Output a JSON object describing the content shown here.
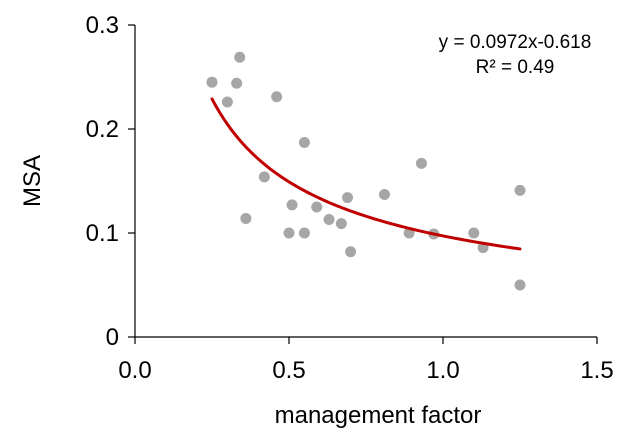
{
  "chart_data": {
    "type": "scatter",
    "title": "",
    "xlabel": "management factor",
    "ylabel": "MSA",
    "xlim": [
      0,
      1.5
    ],
    "ylim": [
      0,
      0.3
    ],
    "x_ticks": [
      0,
      0.5,
      1,
      1.5
    ],
    "x_tick_labels": [
      "0.0",
      "0.5",
      "1.0",
      "1.5"
    ],
    "y_ticks": [
      0,
      0.1,
      0.2,
      0.3
    ],
    "y_tick_labels": [
      "0",
      "0.1",
      "0.2",
      "0.3"
    ],
    "grid": false,
    "legend": "none",
    "colors": {
      "points": "#a6a6a6",
      "trendline": "#c00000",
      "axis": "#000000"
    },
    "series": [
      {
        "type": "scatter",
        "x": [
          0.25,
          0.3,
          0.33,
          0.34,
          0.36,
          0.42,
          0.46,
          0.5,
          0.51,
          0.55,
          0.55,
          0.59,
          0.63,
          0.67,
          0.69,
          0.7,
          0.81,
          0.89,
          0.93,
          0.97,
          1.1,
          1.13,
          1.25,
          1.25
        ],
        "y": [
          0.245,
          0.226,
          0.244,
          0.269,
          0.114,
          0.154,
          0.231,
          0.1,
          0.127,
          0.1,
          0.187,
          0.125,
          0.113,
          0.109,
          0.134,
          0.082,
          0.137,
          0.1,
          0.167,
          0.099,
          0.1,
          0.086,
          0.141,
          0.05
        ]
      },
      {
        "type": "trendline",
        "formula": "y = 0.0972x-0.618",
        "a": 0.0972,
        "b": -0.618,
        "x_range": [
          0.25,
          1.25
        ]
      }
    ],
    "annotations": {
      "equation": "y = 0.0972x-0.618",
      "r_squared": "R² = 0.49"
    }
  }
}
